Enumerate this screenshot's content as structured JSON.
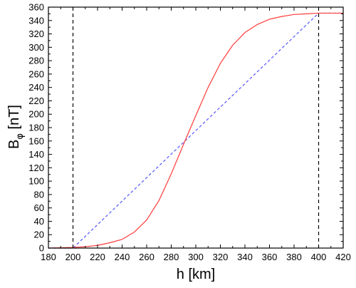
{
  "chart_data": {
    "type": "line",
    "title": "",
    "xlabel": "h [km]",
    "ylabel": {
      "main": "B",
      "sub": "φ",
      "unit": " [nT]"
    },
    "xlim": [
      180,
      420
    ],
    "ylim": [
      0,
      360
    ],
    "x_ticks": [
      180,
      200,
      220,
      240,
      260,
      280,
      300,
      320,
      340,
      360,
      380,
      400,
      420
    ],
    "y_ticks": [
      0,
      20,
      40,
      60,
      80,
      100,
      120,
      140,
      160,
      180,
      200,
      220,
      240,
      260,
      280,
      300,
      320,
      340,
      360
    ],
    "grid": false,
    "legend": "none",
    "series": [
      {
        "color": "#ff3b3b",
        "style": "solid",
        "x": [
          180,
          200,
          210,
          220,
          230,
          240,
          250,
          260,
          270,
          280,
          290,
          300,
          310,
          320,
          330,
          340,
          350,
          360,
          370,
          380,
          390,
          400,
          410,
          420
        ],
        "y": [
          0,
          1,
          2,
          4,
          8,
          13,
          24,
          42,
          71,
          111,
          155,
          198,
          240,
          276,
          303,
          322,
          334,
          342,
          346,
          349,
          350,
          351,
          351,
          351
        ]
      },
      {
        "color": "#5555ff",
        "style": "dashed",
        "x": [
          180,
          200,
          400,
          420
        ],
        "y": [
          0,
          0,
          351,
          351
        ]
      }
    ],
    "vlines": [
      {
        "x": 200,
        "color": "#000000",
        "style": "dashed"
      },
      {
        "x": 400,
        "color": "#000000",
        "style": "dashed"
      }
    ]
  }
}
